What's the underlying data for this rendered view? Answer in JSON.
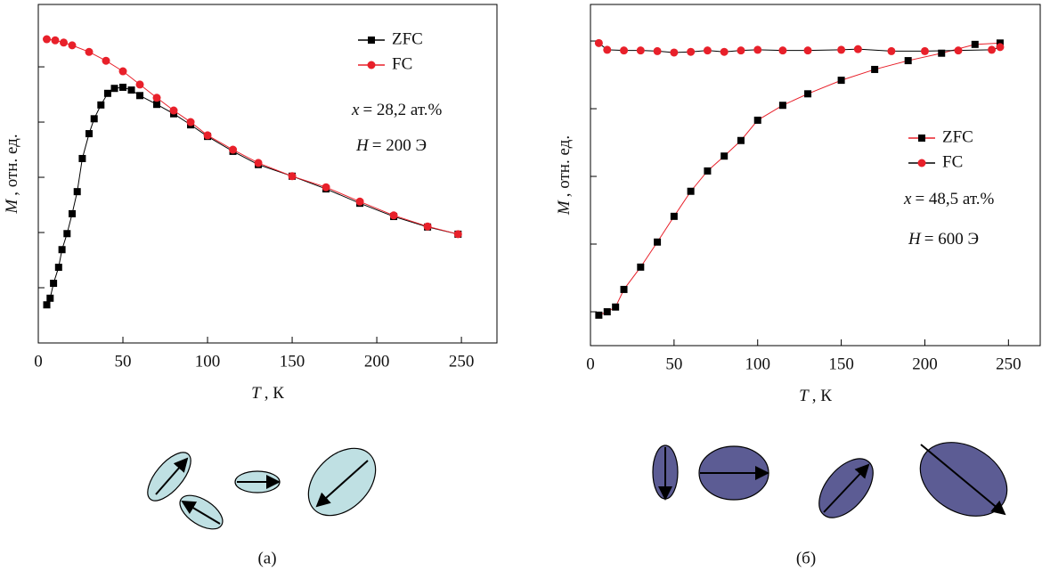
{
  "chart_data": [
    {
      "type": "scatter",
      "x_label": {
        "var": "T",
        "text": ", К"
      },
      "y_label": {
        "var": "M",
        "text": ", отн. ед."
      },
      "xlim": [
        0,
        271
      ],
      "xticks": [
        0,
        50,
        100,
        150,
        200,
        250
      ],
      "ylim": [
        0,
        6.13
      ],
      "yticks": [
        1,
        2,
        3,
        4,
        5
      ],
      "annotations": [
        {
          "var": "x",
          "text": "= 28,2 ат.%"
        },
        {
          "var": "H",
          "text": "= 200  Э"
        }
      ],
      "panel_label": "(а)",
      "series": [
        {
          "name": "ZFC",
          "color": "#000000",
          "line_color": "#000000",
          "marker": "square",
          "x": [
            5,
            7,
            9,
            12,
            14,
            17,
            20,
            23,
            26,
            30,
            33,
            37,
            41,
            45,
            50,
            55,
            60,
            70,
            80,
            90,
            100,
            115,
            130,
            150,
            170,
            190,
            210,
            230,
            248
          ],
          "values": [
            0.69,
            0.81,
            1.08,
            1.37,
            1.69,
            1.98,
            2.34,
            2.74,
            3.34,
            3.79,
            4.06,
            4.31,
            4.52,
            4.61,
            4.63,
            4.58,
            4.48,
            4.32,
            4.15,
            3.95,
            3.74,
            3.47,
            3.23,
            3.02,
            2.79,
            2.53,
            2.29,
            2.1,
            1.97
          ]
        },
        {
          "name": "FC",
          "color": "#e8202a",
          "line_color": "#e8202a",
          "marker": "circle",
          "x": [
            5,
            10,
            15,
            20,
            30,
            40,
            50,
            60,
            70,
            80,
            90,
            100,
            115,
            130,
            150,
            170,
            190,
            210,
            230,
            248
          ],
          "values": [
            5.5,
            5.48,
            5.44,
            5.39,
            5.27,
            5.11,
            4.92,
            4.68,
            4.44,
            4.21,
            4.0,
            3.76,
            3.5,
            3.26,
            3.02,
            2.82,
            2.56,
            2.31,
            2.11,
            1.97
          ]
        }
      ]
    },
    {
      "type": "scatter",
      "x_label": {
        "var": "T",
        "text": ", К"
      },
      "y_label": {
        "var": "M",
        "text": ", отн. ед."
      },
      "xlim": [
        0,
        269
      ],
      "xticks": [
        0,
        50,
        100,
        150,
        200,
        250
      ],
      "ylim": [
        0.5,
        5.54
      ],
      "yticks": [
        1,
        2,
        3,
        4,
        5
      ],
      "annotations": [
        {
          "var": "x",
          "text": "= 48,5 ат.%"
        },
        {
          "var": "H",
          "text": "= 600 Э"
        }
      ],
      "panel_label": "(б)",
      "series": [
        {
          "name": "ZFC",
          "color": "#000000",
          "line_color": "#e8202a",
          "marker": "square",
          "x": [
            5,
            10,
            15,
            20,
            30,
            40,
            50,
            60,
            70,
            80,
            90,
            100,
            115,
            130,
            150,
            170,
            190,
            210,
            230,
            245
          ],
          "values": [
            0.95,
            1.0,
            1.07,
            1.33,
            1.66,
            2.03,
            2.41,
            2.78,
            3.08,
            3.3,
            3.53,
            3.83,
            4.05,
            4.22,
            4.42,
            4.58,
            4.71,
            4.82,
            4.95,
            4.97
          ]
        },
        {
          "name": "FC",
          "color": "#e8202a",
          "line_color": "#000000",
          "marker": "circle",
          "x": [
            5,
            10,
            20,
            30,
            40,
            50,
            60,
            70,
            80,
            90,
            100,
            115,
            130,
            150,
            160,
            180,
            200,
            220,
            240,
            245
          ],
          "values": [
            4.97,
            4.87,
            4.86,
            4.86,
            4.85,
            4.83,
            4.84,
            4.86,
            4.84,
            4.86,
            4.87,
            4.86,
            4.86,
            4.87,
            4.88,
            4.85,
            4.85,
            4.86,
            4.87,
            4.91
          ]
        }
      ]
    }
  ]
}
